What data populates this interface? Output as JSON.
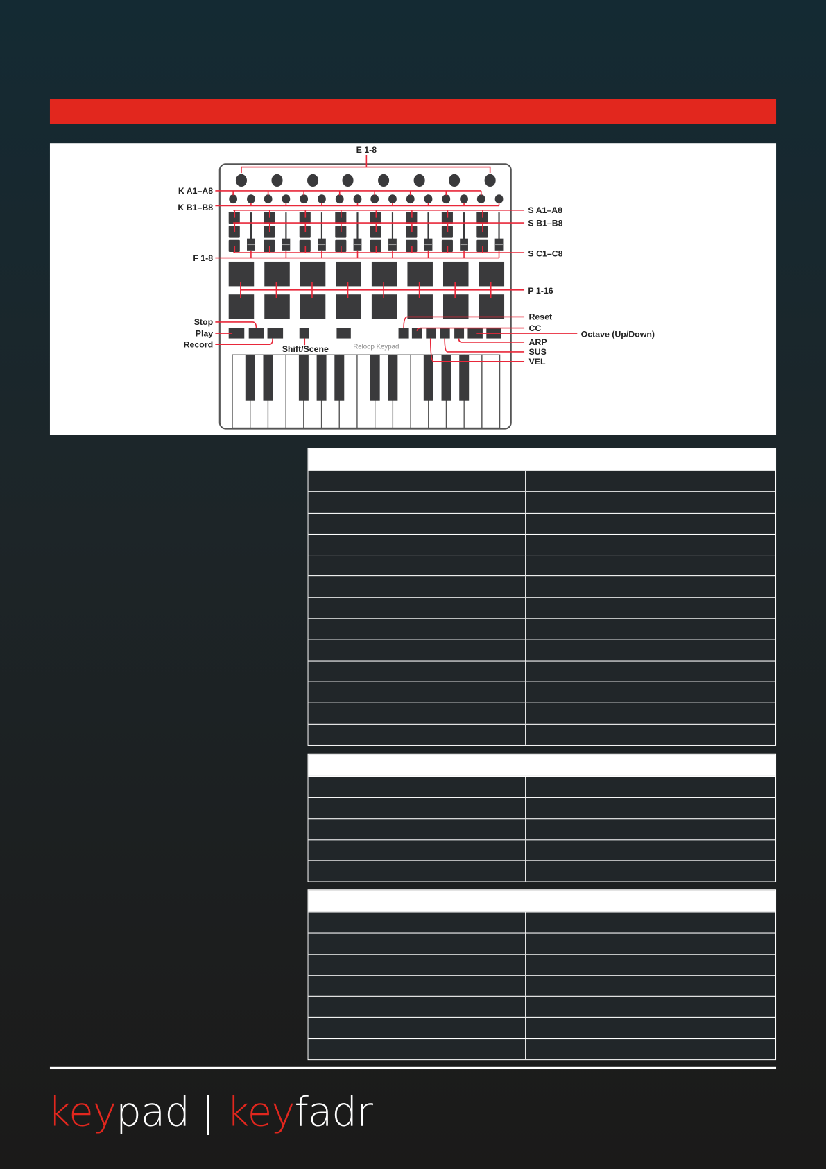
{
  "diagram": {
    "device_name": "Reloop Keypad",
    "labels": {
      "encoders": "E 1-8",
      "knobs_a": "K A1–A8",
      "knobs_b": "K B1–B8",
      "switches_a": "S A1–A8",
      "switches_b": "S B1–B8",
      "switches_c": "S C1–C8",
      "faders": "F 1-8",
      "pads": "P 1-16",
      "stop": "Stop",
      "play": "Play",
      "record": "Record",
      "shift_scene": "Shift/Scene",
      "reset": "Reset",
      "cc": "CC",
      "octave": "Octave (Up/Down)",
      "arp": "ARP",
      "sus": "SUS",
      "vel": "VEL"
    },
    "colors": {
      "annotation": "#e8283a",
      "control": "#3a3a3c",
      "accent_bar": "#e2271e"
    }
  },
  "tables": [
    {
      "header": "",
      "rows": [
        [
          "",
          ""
        ],
        [
          "",
          ""
        ],
        [
          "",
          ""
        ],
        [
          "",
          ""
        ],
        [
          "",
          ""
        ],
        [
          "",
          ""
        ],
        [
          "",
          ""
        ],
        [
          "",
          ""
        ],
        [
          "",
          ""
        ],
        [
          "",
          ""
        ],
        [
          "",
          ""
        ],
        [
          "",
          ""
        ],
        [
          "",
          ""
        ]
      ]
    },
    {
      "header": "",
      "rows": [
        [
          "",
          ""
        ],
        [
          "",
          ""
        ],
        [
          "",
          ""
        ],
        [
          "",
          ""
        ],
        [
          "",
          ""
        ]
      ]
    },
    {
      "header": "",
      "rows": [
        [
          "",
          ""
        ],
        [
          "",
          ""
        ],
        [
          "",
          ""
        ],
        [
          "",
          ""
        ],
        [
          "",
          ""
        ],
        [
          "",
          ""
        ],
        [
          "",
          ""
        ]
      ]
    }
  ],
  "footer": {
    "logo_1a": "key",
    "logo_1b": "pad",
    "separator": "|",
    "logo_2a": "key",
    "logo_2b": "fadr"
  }
}
